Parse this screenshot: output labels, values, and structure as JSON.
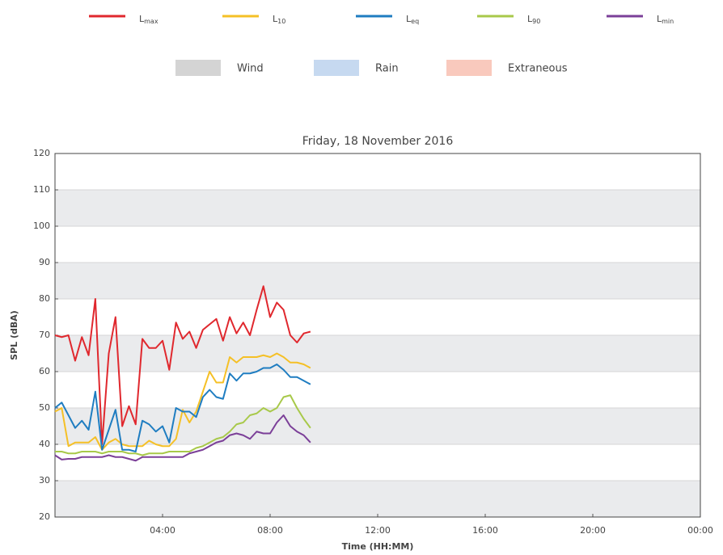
{
  "chart_data": {
    "type": "line",
    "title": "Friday, 18 November 2016",
    "xlabel": "Time (HH:MM)",
    "ylabel": "SPL (dBA)",
    "x": [
      0,
      0.25,
      0.5,
      0.75,
      1,
      1.25,
      1.5,
      1.75,
      2,
      2.25,
      2.5,
      2.75,
      3,
      3.25,
      3.5,
      3.75,
      4,
      4.25,
      4.5,
      4.75,
      5,
      5.25,
      5.5,
      5.75,
      6,
      6.25,
      6.5,
      6.75,
      7,
      7.25,
      7.5,
      7.75,
      8,
      8.25,
      8.5,
      8.75,
      9,
      9.25,
      9.5
    ],
    "series": [
      {
        "name": "Lmax",
        "color": "#e0282e",
        "values": [
          70,
          69.5,
          70,
          63,
          69.5,
          64.5,
          80,
          40,
          65,
          75,
          45,
          50.5,
          45.5,
          69,
          66.5,
          66.5,
          68.5,
          60.5,
          73.5,
          69,
          71,
          66.5,
          71.5,
          73,
          74.5,
          68.5,
          75,
          70.5,
          73.5,
          70,
          77,
          83.5,
          75,
          79,
          77,
          70,
          68,
          70.5,
          71
        ]
      },
      {
        "name": "L10",
        "color": "#f5c026",
        "values": [
          49,
          50,
          39.5,
          40.5,
          40.5,
          40.5,
          42,
          38.5,
          40.5,
          41.5,
          40,
          39.5,
          39.5,
          39.5,
          41,
          40,
          39.5,
          39.5,
          41.5,
          49.5,
          46,
          49,
          54.5,
          60,
          57,
          57,
          64,
          62.5,
          64,
          64,
          64,
          64.5,
          64,
          65,
          64,
          62.5,
          62.5,
          62,
          61
        ]
      },
      {
        "name": "Leq",
        "color": "#1f7dc1",
        "values": [
          50,
          51.5,
          48,
          44.5,
          46.5,
          44,
          54.5,
          38.5,
          44,
          49.5,
          38.5,
          38.5,
          38,
          46.5,
          45.5,
          43.5,
          45,
          40.5,
          50,
          49,
          49,
          47.5,
          53,
          55,
          53,
          52.5,
          59.5,
          57.5,
          59.5,
          59.5,
          60,
          61,
          61,
          62,
          60.5,
          58.5,
          58.5,
          57.5,
          56.5
        ]
      },
      {
        "name": "L90",
        "color": "#a8c94a",
        "values": [
          38,
          38,
          37.5,
          37.5,
          38,
          38,
          38,
          37.5,
          38,
          38,
          38,
          37.5,
          37.5,
          37,
          37.5,
          37.5,
          37.5,
          38,
          38,
          38,
          38,
          39,
          39.5,
          40.5,
          41.5,
          42,
          43.5,
          45.5,
          46,
          48,
          48.5,
          50,
          49,
          50,
          53,
          53.5,
          50,
          47,
          44.5
        ]
      },
      {
        "name": "Lmin",
        "color": "#7b3f98",
        "values": [
          37,
          35.8,
          36,
          36,
          36.5,
          36.5,
          36.5,
          36.5,
          37,
          36.5,
          36.5,
          36,
          35.5,
          36.5,
          36.5,
          36.5,
          36.5,
          36.5,
          36.5,
          36.5,
          37.5,
          38,
          38.5,
          39.5,
          40.5,
          41,
          42.5,
          43,
          42.5,
          41.5,
          43.5,
          43,
          43,
          46,
          48,
          45,
          43.5,
          42.5,
          40.5
        ]
      }
    ],
    "legend_keys": [
      {
        "name": "Wind",
        "color": "#d4d4d4"
      },
      {
        "name": "Rain",
        "color": "#c6d9f0"
      },
      {
        "name": "Extraneous",
        "color": "#f9c9bd"
      }
    ],
    "xlim": [
      0,
      24
    ],
    "xticks": [
      {
        "value": 4,
        "label": "04:00"
      },
      {
        "value": 8,
        "label": "08:00"
      },
      {
        "value": 12,
        "label": "12:00"
      },
      {
        "value": 16,
        "label": "16:00"
      },
      {
        "value": 20,
        "label": "20:00"
      },
      {
        "value": 24,
        "label": "00:00"
      }
    ],
    "ylim": [
      20,
      120
    ],
    "yticks": [
      20,
      30,
      40,
      50,
      60,
      70,
      80,
      90,
      100,
      110,
      120
    ],
    "grid": true
  }
}
